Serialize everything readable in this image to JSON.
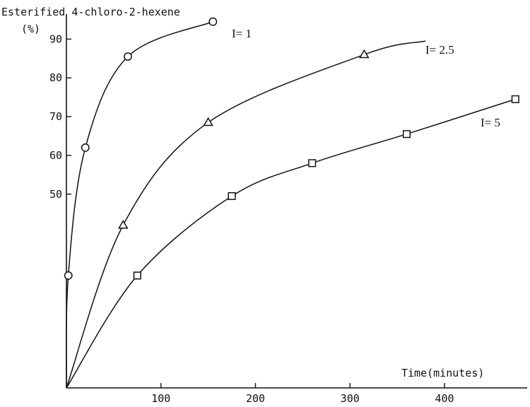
{
  "chart_data": {
    "type": "line",
    "ylabel": "Esterified 4-chloro-2-hexene",
    "yunit": "(%)",
    "xlabel": "Time(minutes)",
    "x_ticks": [
      100,
      200,
      300,
      400
    ],
    "y_ticks": [
      50,
      60,
      70,
      80,
      90
    ],
    "xlim": [
      0,
      480
    ],
    "ylim": [
      0,
      95
    ],
    "series": [
      {
        "name": "I= 1",
        "marker": "circle",
        "x": [
          2,
          20,
          65,
          155
        ],
        "y": [
          29,
          62,
          85.5,
          94.5
        ]
      },
      {
        "name": "I= 2.5",
        "marker": "triangle",
        "x": [
          60,
          150,
          315
        ],
        "y": [
          42,
          68.5,
          86
        ]
      },
      {
        "name": "I= 5",
        "marker": "square",
        "x": [
          75,
          175,
          260,
          360,
          475
        ],
        "y": [
          29,
          49.5,
          58,
          65.5,
          74.5
        ]
      }
    ]
  }
}
